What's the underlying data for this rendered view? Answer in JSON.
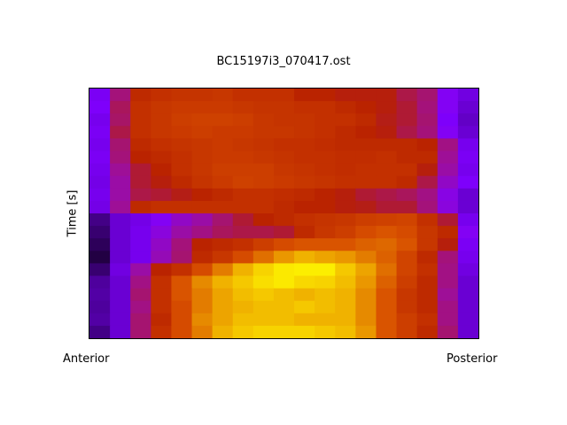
{
  "chart_data": {
    "type": "heatmap",
    "title": "BC15197i3_070417.ost",
    "ylabel": "Time [s]",
    "x_left_label": "Anterior",
    "x_right_label": "Posterior",
    "colormap": [
      "#000000",
      "#5000a0",
      "#8000ff",
      "#a01090",
      "#b82000",
      "#d85000",
      "#f0b000",
      "#ffff00"
    ],
    "grid": false,
    "values": [
      [
        0.27,
        0.45,
        0.6,
        0.62,
        0.63,
        0.63,
        0.64,
        0.62,
        0.62,
        0.62,
        0.58,
        0.58,
        0.56,
        0.56,
        0.56,
        0.5,
        0.46,
        0.3,
        0.24
      ],
      [
        0.28,
        0.48,
        0.62,
        0.64,
        0.65,
        0.65,
        0.65,
        0.64,
        0.63,
        0.63,
        0.62,
        0.62,
        0.6,
        0.58,
        0.56,
        0.52,
        0.45,
        0.3,
        0.22
      ],
      [
        0.26,
        0.47,
        0.62,
        0.64,
        0.66,
        0.67,
        0.67,
        0.66,
        0.64,
        0.63,
        0.63,
        0.62,
        0.62,
        0.6,
        0.55,
        0.52,
        0.46,
        0.28,
        0.2
      ],
      [
        0.27,
        0.5,
        0.62,
        0.64,
        0.65,
        0.66,
        0.65,
        0.65,
        0.64,
        0.64,
        0.63,
        0.62,
        0.6,
        0.58,
        0.56,
        0.5,
        0.45,
        0.3,
        0.22
      ],
      [
        0.26,
        0.46,
        0.6,
        0.62,
        0.63,
        0.64,
        0.65,
        0.64,
        0.63,
        0.62,
        0.62,
        0.61,
        0.6,
        0.6,
        0.6,
        0.6,
        0.58,
        0.44,
        0.26
      ],
      [
        0.27,
        0.45,
        0.58,
        0.6,
        0.62,
        0.64,
        0.65,
        0.65,
        0.64,
        0.63,
        0.62,
        0.62,
        0.61,
        0.61,
        0.62,
        0.6,
        0.6,
        0.42,
        0.27
      ],
      [
        0.26,
        0.42,
        0.52,
        0.58,
        0.62,
        0.64,
        0.66,
        0.66,
        0.66,
        0.64,
        0.63,
        0.62,
        0.61,
        0.62,
        0.62,
        0.62,
        0.56,
        0.4,
        0.26
      ],
      [
        0.25,
        0.4,
        0.52,
        0.56,
        0.6,
        0.63,
        0.65,
        0.67,
        0.66,
        0.65,
        0.64,
        0.63,
        0.62,
        0.62,
        0.62,
        0.6,
        0.5,
        0.36,
        0.28
      ],
      [
        0.26,
        0.4,
        0.5,
        0.52,
        0.55,
        0.58,
        0.6,
        0.62,
        0.62,
        0.61,
        0.6,
        0.58,
        0.56,
        0.52,
        0.5,
        0.48,
        0.44,
        0.32,
        0.22
      ],
      [
        0.25,
        0.42,
        0.6,
        0.62,
        0.62,
        0.62,
        0.62,
        0.62,
        0.62,
        0.6,
        0.58,
        0.58,
        0.56,
        0.55,
        0.52,
        0.52,
        0.45,
        0.33,
        0.22
      ],
      [
        0.12,
        0.22,
        0.25,
        0.3,
        0.36,
        0.4,
        0.46,
        0.52,
        0.58,
        0.6,
        0.62,
        0.63,
        0.64,
        0.66,
        0.67,
        0.68,
        0.62,
        0.52,
        0.26
      ],
      [
        0.1,
        0.22,
        0.26,
        0.33,
        0.4,
        0.44,
        0.48,
        0.5,
        0.5,
        0.52,
        0.6,
        0.64,
        0.66,
        0.7,
        0.72,
        0.7,
        0.64,
        0.6,
        0.3
      ],
      [
        0.08,
        0.22,
        0.26,
        0.36,
        0.45,
        0.58,
        0.6,
        0.62,
        0.66,
        0.7,
        0.72,
        0.72,
        0.72,
        0.74,
        0.75,
        0.72,
        0.64,
        0.56,
        0.27
      ],
      [
        0.06,
        0.22,
        0.26,
        0.38,
        0.46,
        0.6,
        0.64,
        0.7,
        0.76,
        0.82,
        0.86,
        0.84,
        0.82,
        0.78,
        0.74,
        0.68,
        0.6,
        0.45,
        0.26
      ],
      [
        0.1,
        0.24,
        0.4,
        0.58,
        0.62,
        0.7,
        0.78,
        0.86,
        0.92,
        0.96,
        0.97,
        0.97,
        0.9,
        0.84,
        0.76,
        0.68,
        0.62,
        0.44,
        0.24
      ],
      [
        0.14,
        0.22,
        0.44,
        0.62,
        0.72,
        0.8,
        0.86,
        0.9,
        0.94,
        0.96,
        0.93,
        0.92,
        0.88,
        0.82,
        0.74,
        0.66,
        0.6,
        0.44,
        0.22
      ],
      [
        0.15,
        0.22,
        0.46,
        0.62,
        0.72,
        0.78,
        0.84,
        0.88,
        0.9,
        0.88,
        0.86,
        0.88,
        0.86,
        0.8,
        0.72,
        0.64,
        0.6,
        0.42,
        0.22
      ],
      [
        0.14,
        0.22,
        0.44,
        0.62,
        0.7,
        0.78,
        0.84,
        0.86,
        0.88,
        0.88,
        0.9,
        0.88,
        0.86,
        0.8,
        0.72,
        0.64,
        0.6,
        0.44,
        0.22
      ],
      [
        0.15,
        0.22,
        0.46,
        0.6,
        0.7,
        0.8,
        0.84,
        0.88,
        0.88,
        0.88,
        0.86,
        0.86,
        0.86,
        0.8,
        0.72,
        0.66,
        0.62,
        0.44,
        0.22
      ],
      [
        0.12,
        0.22,
        0.46,
        0.62,
        0.7,
        0.78,
        0.86,
        0.9,
        0.92,
        0.92,
        0.92,
        0.9,
        0.88,
        0.82,
        0.72,
        0.66,
        0.6,
        0.46,
        0.22
      ]
    ]
  }
}
